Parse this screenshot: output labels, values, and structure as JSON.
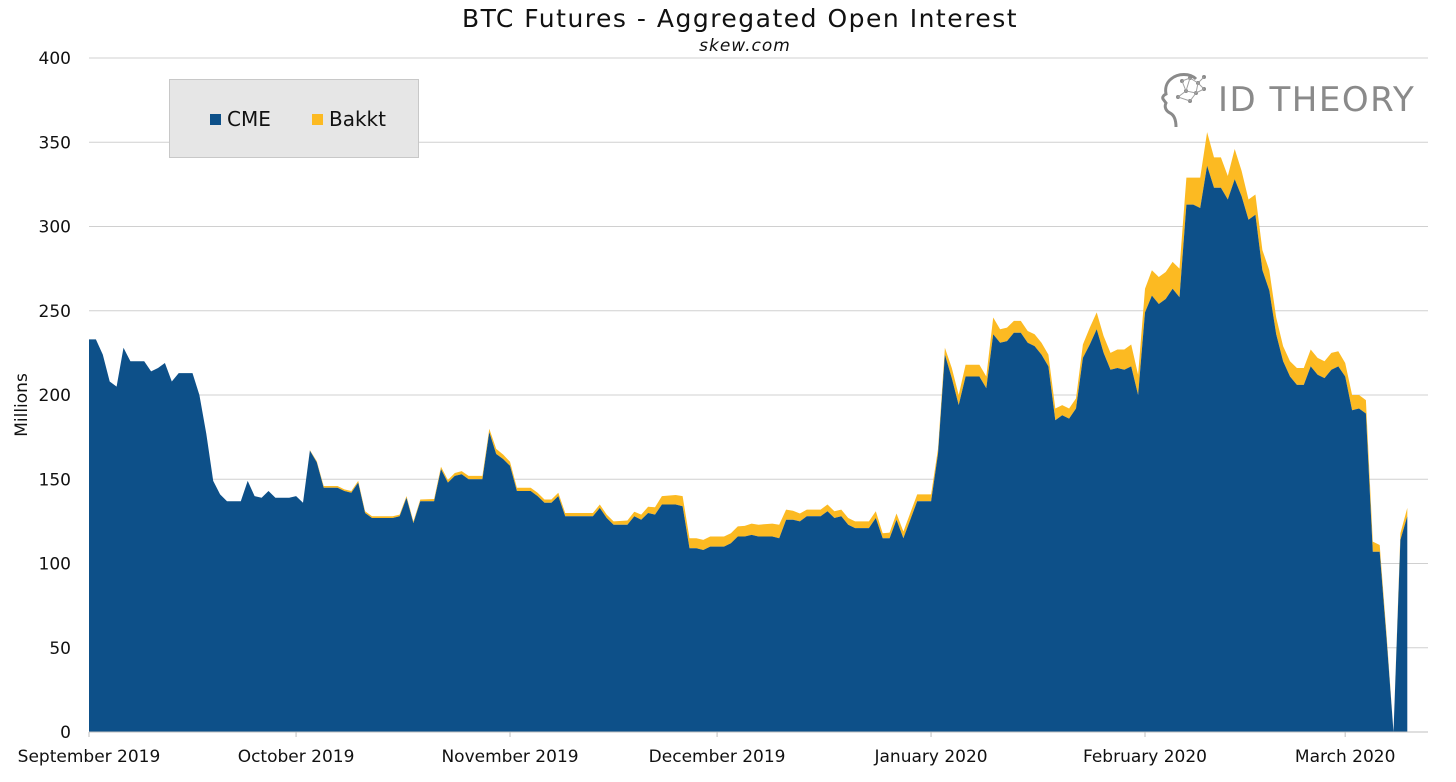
{
  "chart_data": {
    "type": "area",
    "stacked": true,
    "title": "BTC Futures -  Aggregated Open Interest",
    "subtitle": "skew.com",
    "ylabel": "Millions",
    "ylim": [
      0,
      400
    ],
    "yticks": [
      0,
      50,
      100,
      150,
      200,
      250,
      300,
      350,
      400
    ],
    "grid": true,
    "legend_position": "top-left",
    "xticks": [
      {
        "label": "September 2019",
        "date": "2019-09-01"
      },
      {
        "label": "October 2019",
        "date": "2019-10-01"
      },
      {
        "label": "November 2019",
        "date": "2019-11-01"
      },
      {
        "label": "December 2019",
        "date": "2019-12-01"
      },
      {
        "label": "January 2020",
        "date": "2020-01-01"
      },
      {
        "label": "February 2020",
        "date": "2020-02-01"
      },
      {
        "label": "March 2020",
        "date": "2020-03-01"
      }
    ],
    "x_start": "2019-09-01",
    "x_end": "2020-03-13",
    "series": [
      {
        "name": "CME",
        "color": "#0d5089",
        "points": [
          [
            "2019-09-01",
            233
          ],
          [
            "2019-09-02",
            233
          ],
          [
            "2019-09-03",
            224
          ],
          [
            "2019-09-04",
            208
          ],
          [
            "2019-09-05",
            205
          ],
          [
            "2019-09-06",
            228
          ],
          [
            "2019-09-07",
            220
          ],
          [
            "2019-09-09",
            220
          ],
          [
            "2019-09-10",
            214
          ],
          [
            "2019-09-11",
            216
          ],
          [
            "2019-09-12",
            219
          ],
          [
            "2019-09-13",
            208
          ],
          [
            "2019-09-14",
            213
          ],
          [
            "2019-09-16",
            213
          ],
          [
            "2019-09-17",
            200
          ],
          [
            "2019-09-18",
            177
          ],
          [
            "2019-09-19",
            149
          ],
          [
            "2019-09-20",
            141
          ],
          [
            "2019-09-21",
            137
          ],
          [
            "2019-09-23",
            137
          ],
          [
            "2019-09-24",
            149
          ],
          [
            "2019-09-25",
            140
          ],
          [
            "2019-09-26",
            139
          ],
          [
            "2019-09-27",
            143
          ],
          [
            "2019-09-28",
            139
          ],
          [
            "2019-09-30",
            139
          ],
          [
            "2019-10-01",
            140
          ],
          [
            "2019-10-02",
            136
          ],
          [
            "2019-10-03",
            167
          ],
          [
            "2019-10-04",
            160
          ],
          [
            "2019-10-05",
            145
          ],
          [
            "2019-10-07",
            145
          ],
          [
            "2019-10-08",
            143
          ],
          [
            "2019-10-09",
            142
          ],
          [
            "2019-10-10",
            148
          ],
          [
            "2019-10-11",
            130
          ],
          [
            "2019-10-12",
            127
          ],
          [
            "2019-10-14",
            127
          ],
          [
            "2019-10-15",
            127
          ],
          [
            "2019-10-16",
            128
          ],
          [
            "2019-10-17",
            139
          ],
          [
            "2019-10-18",
            124
          ],
          [
            "2019-10-19",
            137
          ],
          [
            "2019-10-21",
            137
          ],
          [
            "2019-10-22",
            156
          ],
          [
            "2019-10-23",
            148
          ],
          [
            "2019-10-24",
            152
          ],
          [
            "2019-10-25",
            153
          ],
          [
            "2019-10-26",
            150
          ],
          [
            "2019-10-28",
            150
          ],
          [
            "2019-10-29",
            178
          ],
          [
            "2019-10-30",
            165
          ],
          [
            "2019-10-31",
            162
          ],
          [
            "2019-11-01",
            158
          ],
          [
            "2019-11-02",
            143
          ],
          [
            "2019-11-04",
            143
          ],
          [
            "2019-11-05",
            140
          ],
          [
            "2019-11-06",
            136
          ],
          [
            "2019-11-07",
            136
          ],
          [
            "2019-11-08",
            140
          ],
          [
            "2019-11-09",
            128
          ],
          [
            "2019-11-11",
            128
          ],
          [
            "2019-11-12",
            128
          ],
          [
            "2019-11-13",
            128
          ],
          [
            "2019-11-14",
            133
          ],
          [
            "2019-11-15",
            127
          ],
          [
            "2019-11-16",
            123
          ],
          [
            "2019-11-18",
            123
          ],
          [
            "2019-11-19",
            128
          ],
          [
            "2019-11-20",
            126
          ],
          [
            "2019-11-21",
            130
          ],
          [
            "2019-11-22",
            129
          ],
          [
            "2019-11-23",
            135
          ],
          [
            "2019-11-25",
            135
          ],
          [
            "2019-11-26",
            134
          ],
          [
            "2019-11-27",
            109
          ],
          [
            "2019-11-28",
            109
          ],
          [
            "2019-11-29",
            108
          ],
          [
            "2019-11-30",
            110
          ],
          [
            "2019-12-02",
            110
          ],
          [
            "2019-12-03",
            112
          ],
          [
            "2019-12-04",
            116
          ],
          [
            "2019-12-05",
            116
          ],
          [
            "2019-12-06",
            117
          ],
          [
            "2019-12-07",
            116
          ],
          [
            "2019-12-09",
            116
          ],
          [
            "2019-12-10",
            115
          ],
          [
            "2019-12-11",
            126
          ],
          [
            "2019-12-12",
            126
          ],
          [
            "2019-12-13",
            125
          ],
          [
            "2019-12-14",
            128
          ],
          [
            "2019-12-16",
            128
          ],
          [
            "2019-12-17",
            131
          ],
          [
            "2019-12-18",
            127
          ],
          [
            "2019-12-19",
            128
          ],
          [
            "2019-12-20",
            123
          ],
          [
            "2019-12-21",
            121
          ],
          [
            "2019-12-23",
            121
          ],
          [
            "2019-12-24",
            127
          ],
          [
            "2019-12-25",
            115
          ],
          [
            "2019-12-26",
            115
          ],
          [
            "2019-12-27",
            126
          ],
          [
            "2019-12-28",
            115
          ],
          [
            "2019-12-30",
            137
          ],
          [
            "2019-12-31",
            137
          ],
          [
            "2020-01-01",
            137
          ],
          [
            "2020-01-02",
            165
          ],
          [
            "2020-01-03",
            224
          ],
          [
            "2020-01-04",
            210
          ],
          [
            "2020-01-05",
            194
          ],
          [
            "2020-01-06",
            211
          ],
          [
            "2020-01-07",
            211
          ],
          [
            "2020-01-08",
            211
          ],
          [
            "2020-01-09",
            204
          ],
          [
            "2020-01-10",
            236
          ],
          [
            "2020-01-11",
            231
          ],
          [
            "2020-01-12",
            232
          ],
          [
            "2020-01-13",
            237
          ],
          [
            "2020-01-14",
            237
          ],
          [
            "2020-01-15",
            231
          ],
          [
            "2020-01-16",
            229
          ],
          [
            "2020-01-17",
            224
          ],
          [
            "2020-01-18",
            217
          ],
          [
            "2020-01-19",
            185
          ],
          [
            "2020-01-20",
            188
          ],
          [
            "2020-01-21",
            186
          ],
          [
            "2020-01-22",
            192
          ],
          [
            "2020-01-23",
            222
          ],
          [
            "2020-01-24",
            230
          ],
          [
            "2020-01-25",
            239
          ],
          [
            "2020-01-26",
            225
          ],
          [
            "2020-01-27",
            215
          ],
          [
            "2020-01-28",
            216
          ],
          [
            "2020-01-29",
            215
          ],
          [
            "2020-01-30",
            217
          ],
          [
            "2020-01-31",
            200
          ],
          [
            "2020-02-01",
            249
          ],
          [
            "2020-02-02",
            259
          ],
          [
            "2020-02-03",
            254
          ],
          [
            "2020-02-04",
            257
          ],
          [
            "2020-02-05",
            263
          ],
          [
            "2020-02-06",
            258
          ],
          [
            "2020-02-07",
            313
          ],
          [
            "2020-02-08",
            313
          ],
          [
            "2020-02-09",
            311
          ],
          [
            "2020-02-10",
            336
          ],
          [
            "2020-02-11",
            323
          ],
          [
            "2020-02-12",
            323
          ],
          [
            "2020-02-13",
            316
          ],
          [
            "2020-02-14",
            328
          ],
          [
            "2020-02-15",
            318
          ],
          [
            "2020-02-16",
            304
          ],
          [
            "2020-02-17",
            307
          ],
          [
            "2020-02-18",
            274
          ],
          [
            "2020-02-19",
            262
          ],
          [
            "2020-02-20",
            236
          ],
          [
            "2020-02-21",
            220
          ],
          [
            "2020-02-22",
            211
          ],
          [
            "2020-02-23",
            206
          ],
          [
            "2020-02-24",
            206
          ],
          [
            "2020-02-25",
            217
          ],
          [
            "2020-02-26",
            212
          ],
          [
            "2020-02-27",
            210
          ],
          [
            "2020-02-28",
            215
          ],
          [
            "2020-02-29",
            217
          ],
          [
            "2020-03-01",
            211
          ],
          [
            "2020-03-02",
            191
          ],
          [
            "2020-03-03",
            192
          ],
          [
            "2020-03-04",
            189
          ],
          [
            "2020-03-05",
            107
          ],
          [
            "2020-03-06",
            107
          ],
          [
            "2020-03-07",
            55
          ],
          [
            "2020-03-08",
            0
          ],
          [
            "2020-03-09",
            114
          ],
          [
            "2020-03-10",
            128
          ]
        ]
      },
      {
        "name": "Bakkt",
        "color": "#fcba22",
        "points": [
          [
            "2019-09-01",
            0
          ],
          [
            "2019-10-02",
            0
          ],
          [
            "2019-10-05",
            1
          ],
          [
            "2019-10-12",
            1
          ],
          [
            "2019-10-19",
            1
          ],
          [
            "2019-10-26",
            2
          ],
          [
            "2019-10-29",
            2
          ],
          [
            "2019-10-30",
            3
          ],
          [
            "2019-11-02",
            2
          ],
          [
            "2019-11-09",
            2
          ],
          [
            "2019-11-16",
            2
          ],
          [
            "2019-11-20",
            3
          ],
          [
            "2019-11-23",
            5
          ],
          [
            "2019-11-26",
            6
          ],
          [
            "2019-11-27",
            6
          ],
          [
            "2019-11-30",
            6
          ],
          [
            "2019-12-03",
            6
          ],
          [
            "2019-12-04",
            6
          ],
          [
            "2019-12-07",
            7
          ],
          [
            "2019-12-10",
            8
          ],
          [
            "2019-12-11",
            6
          ],
          [
            "2019-12-14",
            4
          ],
          [
            "2019-12-17",
            4
          ],
          [
            "2019-12-20",
            4
          ],
          [
            "2019-12-23",
            4
          ],
          [
            "2019-12-24",
            4
          ],
          [
            "2019-12-25",
            3
          ],
          [
            "2019-12-28",
            4
          ],
          [
            "2019-12-30",
            4
          ],
          [
            "2019-12-31",
            4
          ],
          [
            "2020-01-01",
            4
          ],
          [
            "2020-01-02",
            3
          ],
          [
            "2020-01-03",
            4
          ],
          [
            "2020-01-04",
            6
          ],
          [
            "2020-01-05",
            6
          ],
          [
            "2020-01-06",
            7
          ],
          [
            "2020-01-07",
            7
          ],
          [
            "2020-01-08",
            7
          ],
          [
            "2020-01-09",
            7
          ],
          [
            "2020-01-10",
            10
          ],
          [
            "2020-01-11",
            8
          ],
          [
            "2020-01-12",
            8
          ],
          [
            "2020-01-13",
            7
          ],
          [
            "2020-01-14",
            7
          ],
          [
            "2020-01-15",
            7
          ],
          [
            "2020-01-16",
            7
          ],
          [
            "2020-01-17",
            7
          ],
          [
            "2020-01-18",
            7
          ],
          [
            "2020-01-19",
            7
          ],
          [
            "2020-01-20",
            6
          ],
          [
            "2020-01-21",
            6
          ],
          [
            "2020-01-22",
            6
          ],
          [
            "2020-01-23",
            8
          ],
          [
            "2020-01-24",
            10
          ],
          [
            "2020-01-25",
            10
          ],
          [
            "2020-01-26",
            10
          ],
          [
            "2020-01-27",
            10
          ],
          [
            "2020-01-28",
            11
          ],
          [
            "2020-01-29",
            12
          ],
          [
            "2020-01-30",
            13
          ],
          [
            "2020-01-31",
            12
          ],
          [
            "2020-02-01",
            14
          ],
          [
            "2020-02-02",
            15
          ],
          [
            "2020-02-03",
            16
          ],
          [
            "2020-02-04",
            16
          ],
          [
            "2020-02-05",
            16
          ],
          [
            "2020-02-06",
            17
          ],
          [
            "2020-02-07",
            16
          ],
          [
            "2020-02-08",
            16
          ],
          [
            "2020-02-09",
            18
          ],
          [
            "2020-02-10",
            20
          ],
          [
            "2020-02-11",
            18
          ],
          [
            "2020-02-12",
            18
          ],
          [
            "2020-02-13",
            14
          ],
          [
            "2020-02-14",
            18
          ],
          [
            "2020-02-15",
            15
          ],
          [
            "2020-02-16",
            12
          ],
          [
            "2020-02-17",
            12
          ],
          [
            "2020-02-18",
            12
          ],
          [
            "2020-02-19",
            12
          ],
          [
            "2020-02-20",
            10
          ],
          [
            "2020-02-21",
            9
          ],
          [
            "2020-02-22",
            9
          ],
          [
            "2020-02-23",
            10
          ],
          [
            "2020-02-24",
            10
          ],
          [
            "2020-02-25",
            10
          ],
          [
            "2020-02-26",
            10
          ],
          [
            "2020-02-27",
            10
          ],
          [
            "2020-02-28",
            10
          ],
          [
            "2020-02-29",
            9
          ],
          [
            "2020-03-01",
            8
          ],
          [
            "2020-03-02",
            9
          ],
          [
            "2020-03-03",
            8
          ],
          [
            "2020-03-04",
            8
          ],
          [
            "2020-03-05",
            6
          ],
          [
            "2020-03-06",
            4
          ],
          [
            "2020-03-07",
            3
          ],
          [
            "2020-03-08",
            0
          ],
          [
            "2020-03-09",
            4
          ],
          [
            "2020-03-10",
            5
          ]
        ]
      }
    ]
  },
  "legend": {
    "items": [
      {
        "label": "CME",
        "color": "#0d5089"
      },
      {
        "label": "Bakkt",
        "color": "#fcba22"
      }
    ]
  },
  "logo": {
    "text": "ID THEORY",
    "icon": "head-network-icon"
  }
}
